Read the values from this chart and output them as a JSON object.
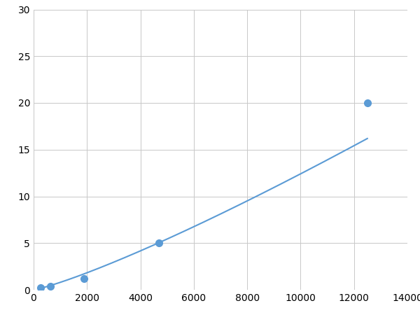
{
  "x_points": [
    250,
    625,
    1875,
    4688,
    12500
  ],
  "y_points": [
    0.2,
    0.4,
    1.2,
    5.0,
    20.0
  ],
  "line_color": "#5b9bd5",
  "marker_color": "#5b9bd5",
  "marker_size": 7,
  "line_width": 1.5,
  "xlim": [
    0,
    14000
  ],
  "ylim": [
    0,
    30
  ],
  "xticks": [
    0,
    2000,
    4000,
    6000,
    8000,
    10000,
    12000,
    14000
  ],
  "yticks": [
    0,
    5,
    10,
    15,
    20,
    25,
    30
  ],
  "grid_color": "#c8c8c8",
  "background_color": "#ffffff",
  "tick_label_fontsize": 10,
  "figsize": [
    6.0,
    4.5
  ],
  "dpi": 100
}
